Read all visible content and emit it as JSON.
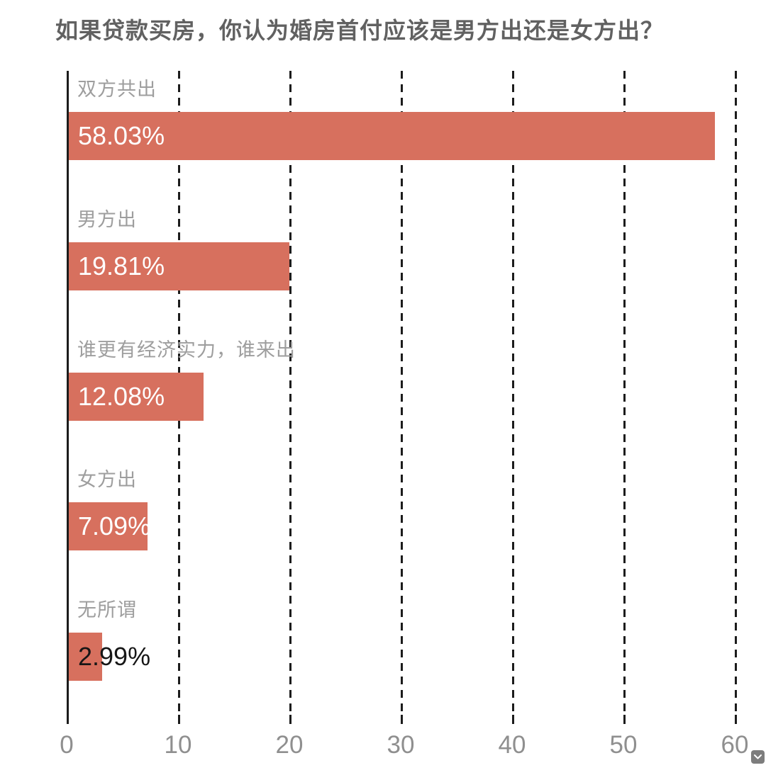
{
  "title": "如果贷款买房，你认为婚房首付应该是男方出还是女方出？",
  "colors": {
    "bar": "#d7705e",
    "title_text": "#616161",
    "category_label": "#9e9e9e",
    "axis_label": "#8f8f8f",
    "value_inside_bar": "#ffffff",
    "value_outside_bar": "#161616",
    "gridline": "#1c1c1c",
    "background": "#ffffff"
  },
  "icons": {
    "axis_corner_icon": "chevron-down-icon"
  },
  "chart_data": {
    "type": "bar",
    "orientation": "horizontal",
    "title": "如果贷款买房，你认为婚房首付应该是男方出还是女方出？",
    "categories": [
      "双方共出",
      "男方出",
      "谁更有经济实力，谁来出",
      "女方出",
      "无所谓"
    ],
    "values": [
      58.03,
      19.81,
      12.08,
      7.09,
      2.99
    ],
    "value_labels": [
      "58.03%",
      "19.81%",
      "12.08%",
      "7.09%",
      "2.99%"
    ],
    "unit": "%",
    "x_ticks": [
      0,
      10,
      20,
      30,
      40,
      50,
      60
    ],
    "x_tick_labels": [
      "0",
      "10",
      "20",
      "30",
      "40",
      "50",
      "60"
    ],
    "xlim": [
      0,
      60
    ],
    "grid": "dashed-vertical",
    "legend": "none",
    "value_label_position": "inside-left, overflows bar in dark text when bar too short"
  }
}
